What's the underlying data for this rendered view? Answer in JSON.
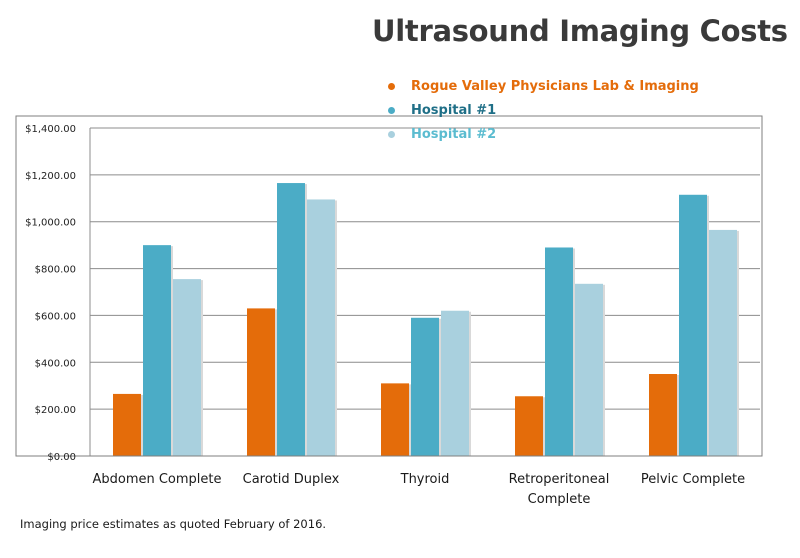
{
  "chart_data": {
    "type": "bar",
    "title": "Ultrasound Imaging Costs",
    "categories": [
      [
        "Abdomen Complete"
      ],
      [
        "Carotid Duplex"
      ],
      [
        "Thyroid"
      ],
      [
        "Retroperitoneal",
        "Complete"
      ],
      [
        "Pelvic Complete"
      ]
    ],
    "series": [
      {
        "name": "Rogue Valley Physicians Lab & Imaging",
        "color": "#e46c0a",
        "values": [
          265,
          630,
          310,
          255,
          350
        ]
      },
      {
        "name": "Hospital #1",
        "color": "#4bacc6",
        "values": [
          900,
          1165,
          590,
          890,
          1115
        ]
      },
      {
        "name": "Hospital #2",
        "color": "#a9d0de",
        "values": [
          755,
          1095,
          620,
          735,
          965
        ]
      }
    ],
    "yticks": [
      "$0.00",
      "$200.00",
      "$400.00",
      "$600.00",
      "$800.00",
      "$1,000.00",
      "$1,200.00",
      "$1,400.00"
    ],
    "ylim": [
      0,
      1400
    ],
    "grid": true,
    "legend_position": "top-right"
  },
  "legend_colors": [
    "#e46c0a",
    "#1f6f87",
    "#5bbcd0"
  ],
  "footnote": "Imaging price estimates as quoted February of 2016."
}
